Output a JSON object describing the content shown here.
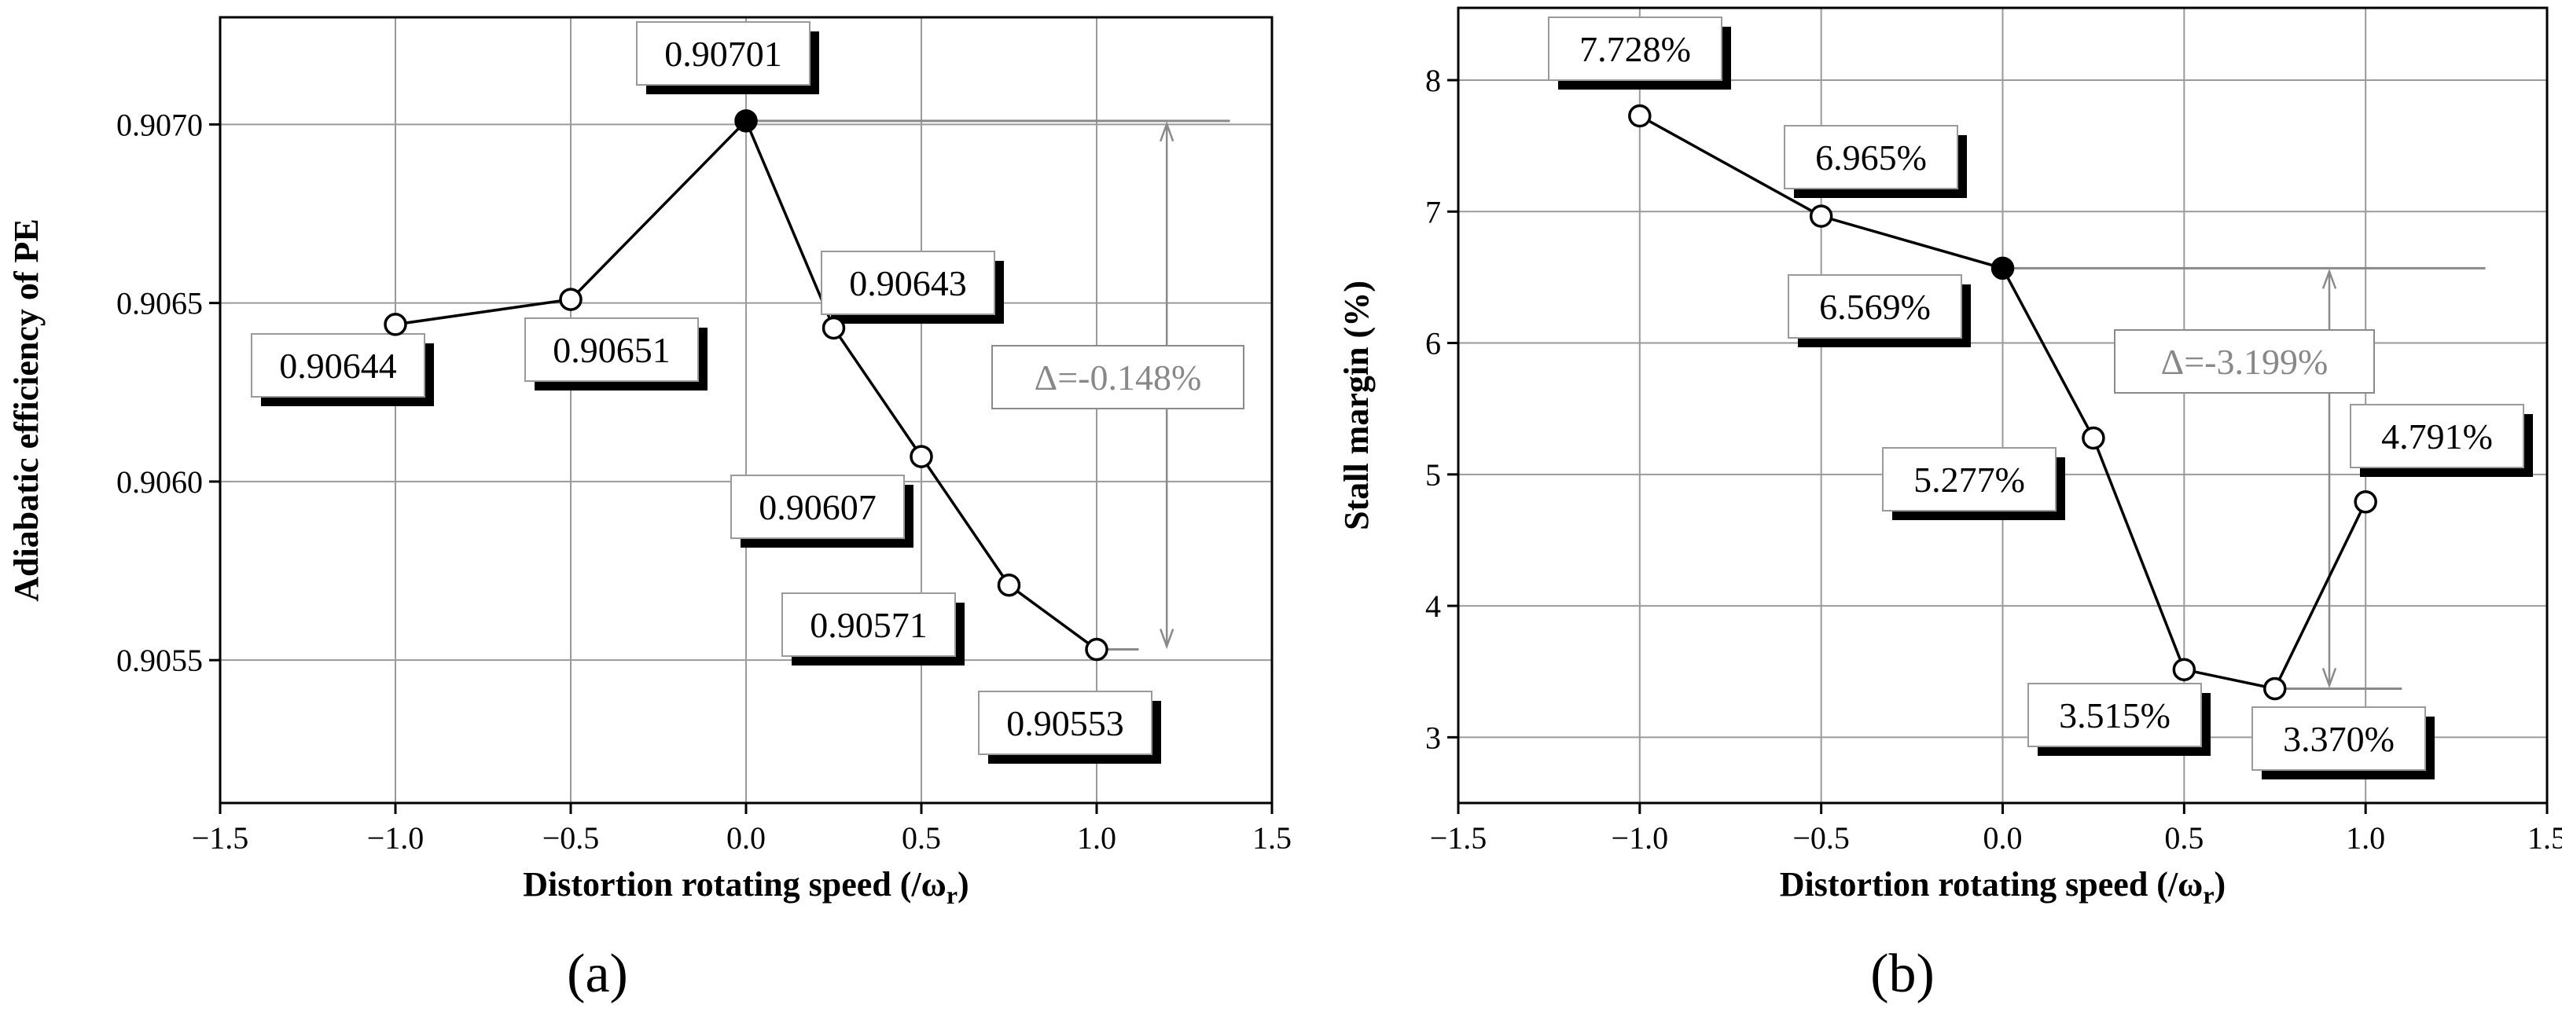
{
  "chart_data": [
    {
      "type": "line",
      "panel_label": "(a)",
      "xlabel": "Distortion rotating speed (/ω",
      "xlabel_sub": "r",
      "xlabel_close": ")",
      "ylabel": "Adiabatic efficiency of PE",
      "xlim": [
        -1.5,
        1.5
      ],
      "ylim": [
        0.9051,
        0.9073
      ],
      "xticks": [
        -1.5,
        -1.0,
        -0.5,
        0.0,
        0.5,
        1.0,
        1.5
      ],
      "xtick_labels": [
        "−1.5",
        "−1.0",
        "−0.5",
        "0.0",
        "0.5",
        "1.0",
        "1.5"
      ],
      "yticks": [
        0.9055,
        0.906,
        0.9065,
        0.907
      ],
      "ytick_labels": [
        "0.9055",
        "0.9060",
        "0.9065",
        "0.9070"
      ],
      "x": [
        -1.0,
        -0.5,
        0.0,
        0.25,
        0.5,
        0.75,
        1.0
      ],
      "y": [
        0.90644,
        0.90651,
        0.90701,
        0.90643,
        0.90607,
        0.90571,
        0.90553
      ],
      "point_labels": [
        "0.90644",
        "0.90651",
        "0.90701",
        "0.90643",
        "0.90607",
        "0.90571",
        "0.90553"
      ],
      "delta_label": "Δ=-0.148%"
    },
    {
      "type": "line",
      "panel_label": "(b)",
      "xlabel": "Distortion rotating speed (/ω",
      "xlabel_sub": "r",
      "xlabel_close": ")",
      "ylabel": "Stall margin (%)",
      "xlim": [
        -1.5,
        1.5
      ],
      "ylim": [
        2.5,
        8.55
      ],
      "xticks": [
        -1.5,
        -1.0,
        -0.5,
        0.0,
        0.5,
        1.0,
        1.5
      ],
      "xtick_labels": [
        "−1.5",
        "−1.0",
        "−0.5",
        "0.0",
        "0.5",
        "1.0",
        "1.5"
      ],
      "yticks": [
        3,
        4,
        5,
        6,
        7,
        8
      ],
      "ytick_labels": [
        "3",
        "4",
        "5",
        "6",
        "7",
        "8"
      ],
      "x": [
        -1.0,
        -0.5,
        0.0,
        0.25,
        0.5,
        0.75,
        1.0
      ],
      "y": [
        7.728,
        6.965,
        6.569,
        5.277,
        3.515,
        3.37,
        4.791
      ],
      "point_labels": [
        "7.728%",
        "6.965%",
        "6.569%",
        "5.277%",
        "3.515%",
        "3.370%",
        "4.791%"
      ],
      "delta_label": "Δ=-3.199%"
    }
  ]
}
